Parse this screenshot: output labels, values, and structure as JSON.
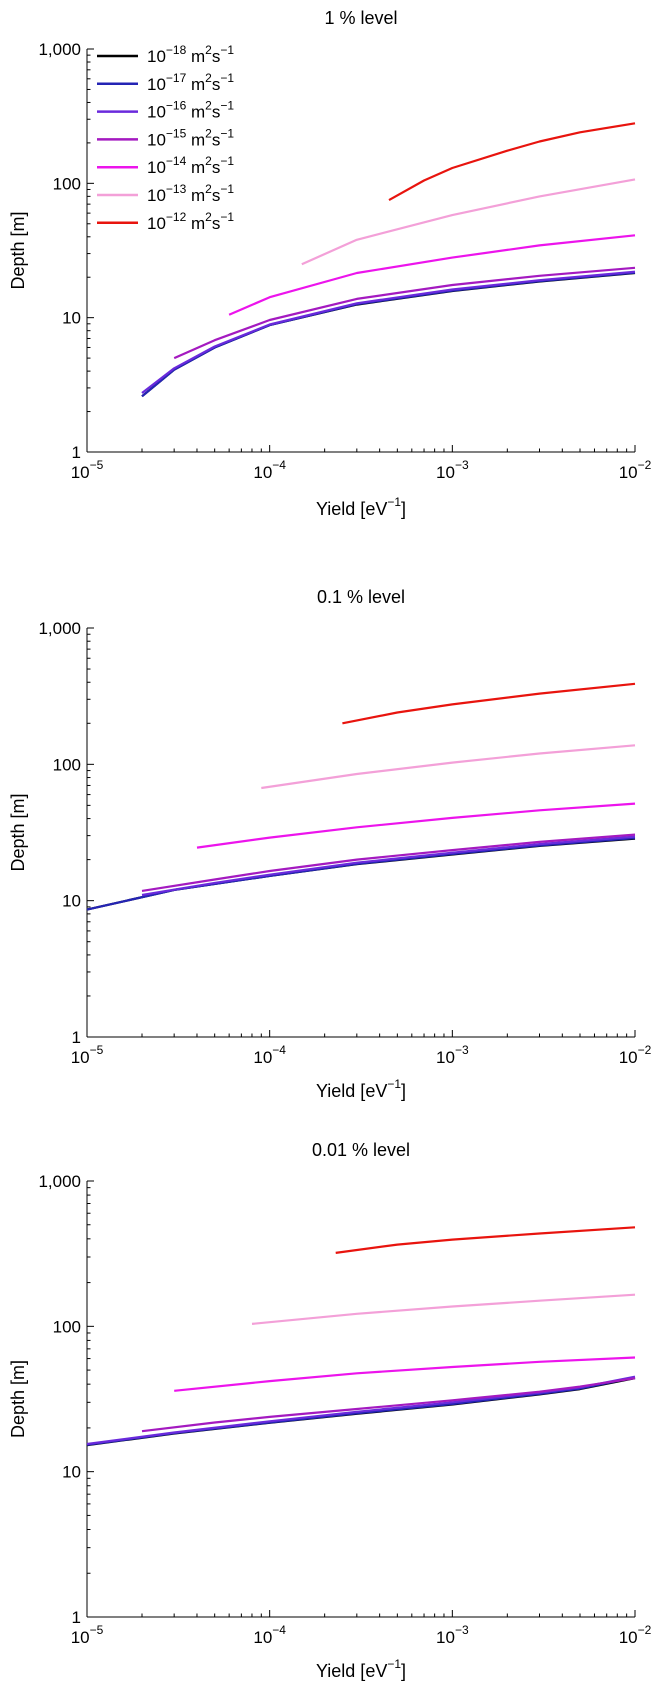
{
  "chart_data": [
    {
      "type": "line",
      "title": "1 % level",
      "xlabel": "Yield [eV",
      "xlabel_sup": "−1",
      "xlabel_tail": "]",
      "ylabel": "Depth [m]",
      "xscale": "log",
      "yscale": "log",
      "xlim": [
        1e-05,
        0.01
      ],
      "ylim": [
        1,
        1000
      ],
      "xticks": [
        {
          "base": "10",
          "exp": "−5"
        },
        {
          "base": "10",
          "exp": "−4"
        },
        {
          "base": "10",
          "exp": "−3"
        },
        {
          "base": "10",
          "exp": "−2"
        }
      ],
      "yticks": [
        "1",
        "10",
        "100",
        "1,000"
      ],
      "ytick_values": [
        1,
        10,
        100,
        1000
      ],
      "grid": false,
      "legend": "top-left",
      "series": [
        {
          "legend_index": 0,
          "color": "#000000",
          "x": [
            2e-05,
            3e-05,
            5e-05,
            0.0001,
            0.0003,
            0.001,
            0.003,
            0.01
          ],
          "y": [
            2.6,
            4.1,
            6.0,
            8.8,
            12.5,
            15.8,
            18.6,
            21.5
          ]
        },
        {
          "legend_index": 1,
          "color": "#2424b4",
          "x": [
            2e-05,
            3e-05,
            5e-05,
            0.0001,
            0.0003,
            0.001,
            0.003,
            0.01
          ],
          "y": [
            2.6,
            4.1,
            6.0,
            8.8,
            12.6,
            15.9,
            18.7,
            21.6
          ]
        },
        {
          "legend_index": 2,
          "color": "#6a2adc",
          "x": [
            2e-05,
            3e-05,
            5e-05,
            0.0001,
            0.0003,
            0.001,
            0.003,
            0.01
          ],
          "y": [
            2.75,
            4.2,
            6.1,
            8.9,
            12.8,
            16.2,
            19.0,
            22.0
          ]
        },
        {
          "legend_index": 3,
          "color": "#a41ac0",
          "x": [
            3e-05,
            5e-05,
            0.0001,
            0.0003,
            0.001,
            0.003,
            0.01
          ],
          "y": [
            5.0,
            6.8,
            9.6,
            13.8,
            17.5,
            20.5,
            23.5
          ]
        },
        {
          "legend_index": 4,
          "color": "#ec14ec",
          "x": [
            6e-05,
            0.0001,
            0.0003,
            0.001,
            0.003,
            0.01
          ],
          "y": [
            10.5,
            14.2,
            21.5,
            28.0,
            34.5,
            41.0
          ]
        },
        {
          "legend_index": 5,
          "color": "#f3a0d8",
          "x": [
            0.00015,
            0.0003,
            0.001,
            0.003,
            0.01
          ],
          "y": [
            25.0,
            38.0,
            58.0,
            80.0,
            107.0
          ]
        },
        {
          "legend_index": 6,
          "color": "#e8140e",
          "x": [
            0.00045,
            0.0007,
            0.001,
            0.002,
            0.003,
            0.005,
            0.01
          ],
          "y": [
            75.0,
            105.0,
            130.0,
            175.0,
            205.0,
            240.0,
            280.0
          ]
        }
      ],
      "legend_entries": [
        {
          "color": "#000000",
          "base": "10",
          "exp": "−18",
          "unit": "m",
          "unit_exp": "2",
          "unit2": "s",
          "unit2_exp": "−1"
        },
        {
          "color": "#2424b4",
          "base": "10",
          "exp": "−17",
          "unit": "m",
          "unit_exp": "2",
          "unit2": "s",
          "unit2_exp": "−1"
        },
        {
          "color": "#6a2adc",
          "base": "10",
          "exp": "−16",
          "unit": "m",
          "unit_exp": "2",
          "unit2": "s",
          "unit2_exp": "−1"
        },
        {
          "color": "#a41ac0",
          "base": "10",
          "exp": "−15",
          "unit": "m",
          "unit_exp": "2",
          "unit2": "s",
          "unit2_exp": "−1"
        },
        {
          "color": "#ec14ec",
          "base": "10",
          "exp": "−14",
          "unit": "m",
          "unit_exp": "2",
          "unit2": "s",
          "unit2_exp": "−1"
        },
        {
          "color": "#f3a0d8",
          "base": "10",
          "exp": "−13",
          "unit": "m",
          "unit_exp": "2",
          "unit2": "s",
          "unit2_exp": "−1"
        },
        {
          "color": "#e8140e",
          "base": "10",
          "exp": "−12",
          "unit": "m",
          "unit_exp": "2",
          "unit2": "s",
          "unit2_exp": "−1"
        }
      ]
    },
    {
      "type": "line",
      "title": "0.1 % level",
      "xlabel": "Yield [eV",
      "xlabel_sup": "−1",
      "xlabel_tail": "]",
      "ylabel": "Depth [m]",
      "xscale": "log",
      "yscale": "log",
      "xlim": [
        1e-05,
        0.01
      ],
      "ylim": [
        1,
        1000
      ],
      "xticks": [
        {
          "base": "10",
          "exp": "−5"
        },
        {
          "base": "10",
          "exp": "−4"
        },
        {
          "base": "10",
          "exp": "−3"
        },
        {
          "base": "10",
          "exp": "−2"
        }
      ],
      "yticks": [
        "1",
        "10",
        "100",
        "1,000"
      ],
      "ytick_values": [
        1,
        10,
        100,
        1000
      ],
      "grid": false,
      "series": [
        {
          "color": "#000000",
          "x": [
            1e-05,
            3e-05,
            0.0001,
            0.0003,
            0.001,
            0.003,
            0.01
          ],
          "y": [
            8.6,
            12.0,
            15.2,
            18.5,
            21.8,
            25.2,
            28.5
          ]
        },
        {
          "color": "#2424b4",
          "x": [
            1e-05,
            3e-05,
            0.0001,
            0.0003,
            0.001,
            0.003,
            0.01
          ],
          "y": [
            8.6,
            12.0,
            15.2,
            18.6,
            22.0,
            25.4,
            28.8
          ]
        },
        {
          "color": "#6a2adc",
          "x": [
            2e-05,
            5e-05,
            0.0001,
            0.0003,
            0.001,
            0.003,
            0.01
          ],
          "y": [
            11.0,
            13.5,
            15.5,
            19.0,
            22.5,
            26.0,
            29.5
          ]
        },
        {
          "color": "#a41ac0",
          "x": [
            2e-05,
            5e-05,
            0.0001,
            0.0003,
            0.001,
            0.003,
            0.01
          ],
          "y": [
            11.8,
            14.3,
            16.5,
            20.0,
            23.5,
            27.0,
            30.5
          ]
        },
        {
          "color": "#ec14ec",
          "x": [
            4e-05,
            0.0001,
            0.0003,
            0.001,
            0.003,
            0.01
          ],
          "y": [
            24.5,
            29.0,
            34.5,
            40.5,
            46.0,
            51.5
          ]
        },
        {
          "color": "#f3a0d8",
          "x": [
            9e-05,
            0.0003,
            0.001,
            0.003,
            0.01
          ],
          "y": [
            67.0,
            85.0,
            103.0,
            120.0,
            138.0
          ]
        },
        {
          "color": "#e8140e",
          "x": [
            0.00025,
            0.0005,
            0.001,
            0.003,
            0.01
          ],
          "y": [
            200.0,
            240.0,
            275.0,
            330.0,
            390.0
          ]
        }
      ]
    },
    {
      "type": "line",
      "title": "0.01 % level",
      "xlabel": "Yield [eV",
      "xlabel_sup": "−1",
      "xlabel_tail": "]",
      "ylabel": "Depth [m]",
      "xscale": "log",
      "yscale": "log",
      "xlim": [
        1e-05,
        0.01
      ],
      "ylim": [
        1,
        1000
      ],
      "xticks": [
        {
          "base": "10",
          "exp": "−5"
        },
        {
          "base": "10",
          "exp": "−4"
        },
        {
          "base": "10",
          "exp": "−3"
        },
        {
          "base": "10",
          "exp": "−2"
        }
      ],
      "yticks": [
        "1",
        "10",
        "100",
        "1,000"
      ],
      "ytick_values": [
        1,
        10,
        100,
        1000
      ],
      "grid": false,
      "series": [
        {
          "color": "#000000",
          "x": [
            1e-05,
            3e-05,
            0.0001,
            0.0003,
            0.001,
            0.003,
            0.005,
            0.01
          ],
          "y": [
            15.2,
            18.3,
            21.7,
            25.0,
            29.0,
            34.0,
            37.0,
            44.0
          ]
        },
        {
          "color": "#2424b4",
          "x": [
            1e-05,
            3e-05,
            0.0001,
            0.0003,
            0.001,
            0.003,
            0.005,
            0.01
          ],
          "y": [
            15.3,
            18.4,
            21.8,
            25.2,
            29.2,
            34.3,
            37.3,
            44.5
          ]
        },
        {
          "color": "#6a2adc",
          "x": [
            1e-05,
            3e-05,
            0.0001,
            0.0003,
            0.001,
            0.003,
            0.005,
            0.01
          ],
          "y": [
            15.5,
            18.6,
            22.2,
            25.8,
            30.0,
            35.0,
            38.0,
            45.0
          ]
        },
        {
          "color": "#a41ac0",
          "x": [
            2e-05,
            5e-05,
            0.0001,
            0.0003,
            0.001,
            0.003,
            0.005,
            0.01
          ],
          "y": [
            19.0,
            21.8,
            23.8,
            27.0,
            31.0,
            35.5,
            38.5,
            44.0
          ]
        },
        {
          "color": "#ec14ec",
          "x": [
            3e-05,
            0.0001,
            0.0003,
            0.001,
            0.003,
            0.01
          ],
          "y": [
            36.0,
            42.0,
            47.5,
            52.5,
            57.0,
            61.0
          ]
        },
        {
          "color": "#f3a0d8",
          "x": [
            8e-05,
            0.0003,
            0.001,
            0.003,
            0.01
          ],
          "y": [
            104.0,
            122.0,
            137.0,
            150.0,
            165.0
          ]
        },
        {
          "color": "#e8140e",
          "x": [
            0.00023,
            0.0005,
            0.001,
            0.003,
            0.01
          ],
          "y": [
            320.0,
            365.0,
            395.0,
            435.0,
            480.0
          ]
        }
      ]
    }
  ]
}
